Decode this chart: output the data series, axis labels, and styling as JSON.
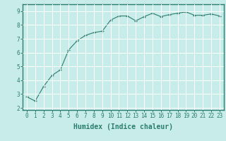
{
  "x": [
    0,
    1,
    2,
    3,
    4,
    5,
    6,
    7,
    8,
    9,
    10,
    11,
    12,
    13,
    14,
    15,
    16,
    17,
    18,
    19,
    20,
    21,
    22,
    23
  ],
  "y": [
    2.8,
    2.5,
    3.55,
    4.35,
    4.75,
    6.2,
    6.85,
    7.25,
    7.45,
    7.55,
    8.35,
    8.65,
    8.65,
    8.3,
    8.6,
    8.85,
    8.6,
    8.75,
    8.85,
    8.95,
    8.7,
    8.7,
    8.8,
    8.65
  ],
  "xlabel": "Humidex (Indice chaleur)",
  "xlim": [
    -0.5,
    23.5
  ],
  "ylim": [
    1.85,
    9.5
  ],
  "yticks": [
    2,
    3,
    4,
    5,
    6,
    7,
    8,
    9
  ],
  "xticks": [
    0,
    1,
    2,
    3,
    4,
    5,
    6,
    7,
    8,
    9,
    10,
    11,
    12,
    13,
    14,
    15,
    16,
    17,
    18,
    19,
    20,
    21,
    22,
    23
  ],
  "line_color": "#2a7d6e",
  "bg_color": "#c8ecea",
  "grid_color": "#ffffff",
  "tick_fontsize": 5.5,
  "xlabel_fontsize": 7.0
}
